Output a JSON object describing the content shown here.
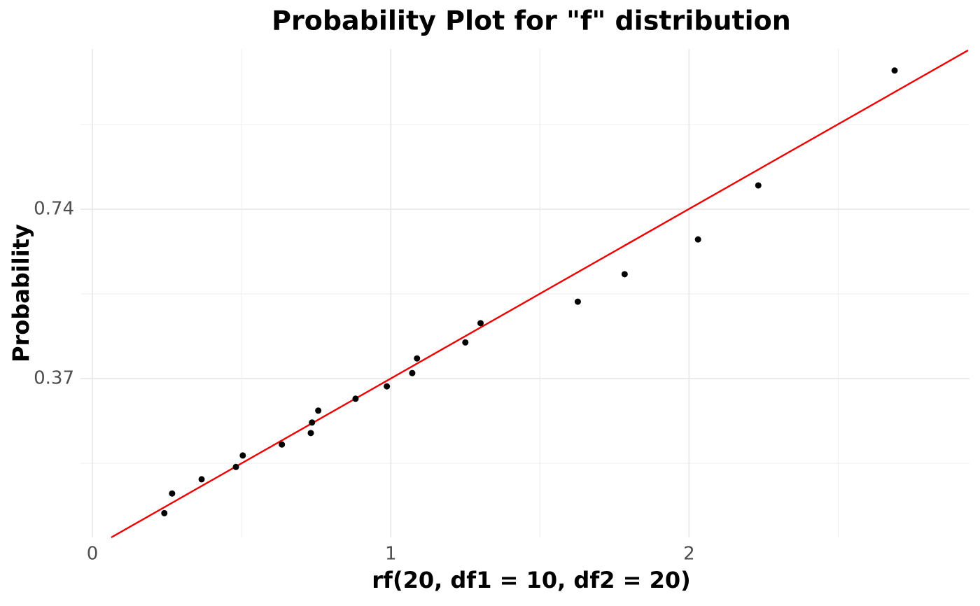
{
  "chart_data": {
    "type": "scatter",
    "title": "Probability Plot for \"f\" distribution",
    "x_label": "rf(20, df1 = 10, df2 = 20)",
    "y_label": "Probability",
    "xlim": [
      -0.04,
      2.94
    ],
    "ylim": [
      0.023,
      1.09
    ],
    "xticks": [
      0,
      1,
      2
    ],
    "yticks": [
      0.37,
      0.74
    ],
    "grid": true,
    "points": {
      "color": "#000000",
      "x": [
        0.241,
        0.267,
        0.366,
        0.481,
        0.504,
        0.635,
        0.732,
        0.736,
        0.757,
        0.882,
        0.987,
        1.072,
        1.088,
        1.25,
        1.301,
        1.627,
        1.784,
        2.03,
        2.232,
        2.689
      ],
      "y": [
        0.076,
        0.119,
        0.15,
        0.177,
        0.202,
        0.226,
        0.251,
        0.274,
        0.3,
        0.326,
        0.353,
        0.382,
        0.414,
        0.449,
        0.491,
        0.538,
        0.598,
        0.674,
        0.792,
        1.043
      ]
    },
    "fit_line": {
      "color": "#ee0000",
      "x": [
        0.063,
        2.935
      ],
      "y": [
        0.023,
        1.087
      ]
    }
  }
}
